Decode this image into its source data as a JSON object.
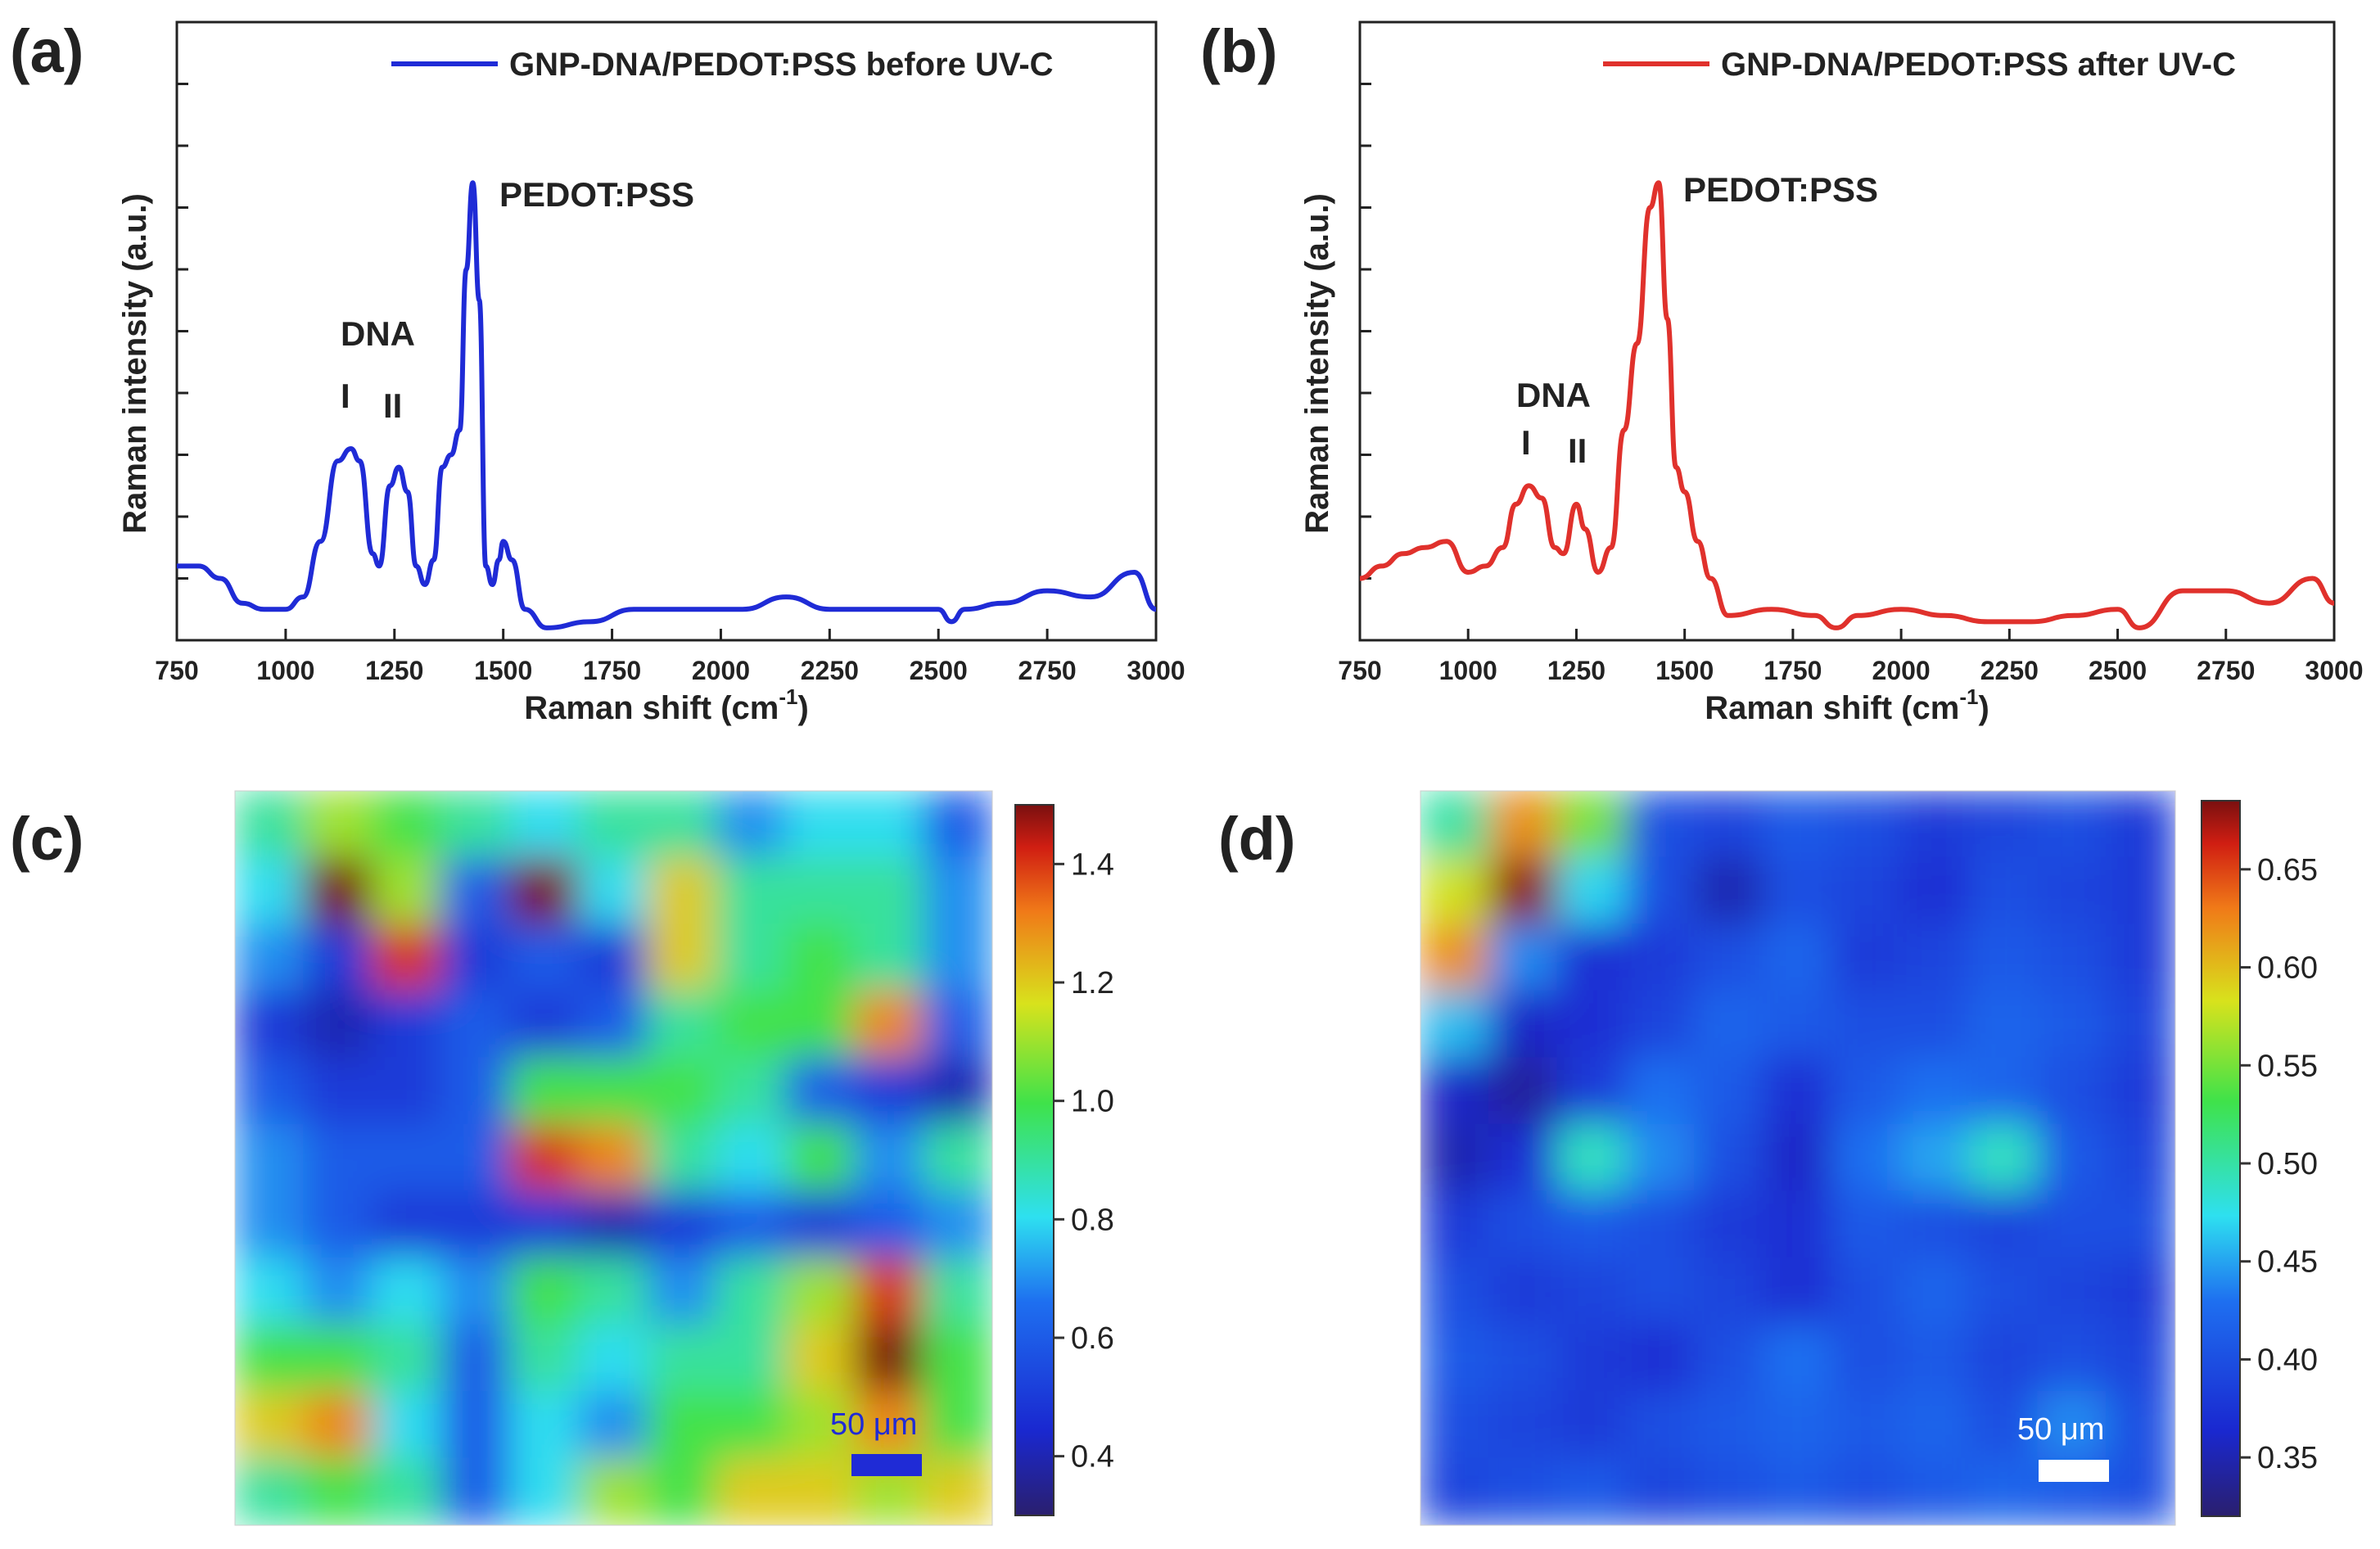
{
  "panel_labels": {
    "a": "(a)",
    "b": "(b)",
    "c": "(c)",
    "d": "(d)"
  },
  "chart_data": [
    {
      "id": "a",
      "type": "line",
      "title": "",
      "xlabel": "Raman shift (cm",
      "xlabel_sup": "-1",
      "xlabel_end": ")",
      "ylabel": "Raman intensity (a.u.)",
      "xlim": [
        750,
        3000
      ],
      "ylim": [
        0,
        100
      ],
      "xticks": [
        750,
        1000,
        1250,
        1500,
        1750,
        2000,
        2250,
        2500,
        2750,
        3000
      ],
      "yticks_unlabeled": [
        10,
        20,
        30,
        40,
        50,
        60,
        70,
        80,
        90
      ],
      "legend": "GNP-DNA/PEDOT:PSS before UV-C",
      "color": "#1f2bd6",
      "annotations": {
        "peak_label": "PEDOT:PSS",
        "dna_label": "DNA",
        "band1": "I",
        "band2": "II"
      },
      "series": [
        {
          "name": "GNP-DNA/PEDOT:PSS before UV-C",
          "x": [
            750,
            800,
            850,
            900,
            950,
            1000,
            1040,
            1080,
            1120,
            1150,
            1170,
            1200,
            1215,
            1240,
            1260,
            1280,
            1300,
            1320,
            1340,
            1360,
            1380,
            1400,
            1415,
            1430,
            1445,
            1460,
            1475,
            1490,
            1500,
            1520,
            1550,
            1600,
            1700,
            1800,
            1900,
            2000,
            2050,
            2150,
            2250,
            2400,
            2500,
            2530,
            2560,
            2650,
            2750,
            2850,
            2950,
            3000
          ],
          "y": [
            12,
            12,
            10,
            6,
            5,
            5,
            7,
            16,
            29,
            31,
            29,
            14,
            12,
            25,
            28,
            24,
            12,
            9,
            13,
            28,
            30,
            34,
            60,
            74,
            55,
            12,
            9,
            13,
            16,
            13,
            5,
            2,
            3,
            5,
            5,
            5,
            5,
            7,
            5,
            5,
            5,
            3,
            5,
            6,
            8,
            7,
            11,
            5
          ]
        }
      ]
    },
    {
      "id": "b",
      "type": "line",
      "title": "",
      "xlabel": "Raman shift (cm",
      "xlabel_sup": "-1",
      "xlabel_end": ")",
      "ylabel": "Raman intensity (a.u.)",
      "xlim": [
        750,
        3000
      ],
      "ylim": [
        0,
        100
      ],
      "xticks": [
        750,
        1000,
        1250,
        1500,
        1750,
        2000,
        2250,
        2500,
        2750,
        3000
      ],
      "yticks_unlabeled": [
        10,
        20,
        30,
        40,
        50,
        60,
        70,
        80,
        90
      ],
      "legend": "GNP-DNA/PEDOT:PSS after UV-C",
      "color": "#e0312c",
      "annotations": {
        "peak_label": "PEDOT:PSS",
        "dna_label": "DNA",
        "band1": "I",
        "band2": "II"
      },
      "series": [
        {
          "name": "GNP-DNA/PEDOT:PSS after UV-C",
          "x": [
            750,
            800,
            850,
            900,
            950,
            1000,
            1040,
            1080,
            1110,
            1140,
            1170,
            1200,
            1220,
            1250,
            1270,
            1300,
            1330,
            1360,
            1390,
            1420,
            1440,
            1460,
            1480,
            1500,
            1530,
            1560,
            1600,
            1700,
            1800,
            1850,
            1900,
            2000,
            2100,
            2200,
            2300,
            2400,
            2500,
            2550,
            2650,
            2750,
            2850,
            2950,
            3000
          ],
          "y": [
            10,
            12,
            14,
            15,
            16,
            11,
            12,
            15,
            22,
            25,
            23,
            15,
            14,
            22,
            18,
            11,
            15,
            34,
            48,
            70,
            74,
            52,
            28,
            24,
            16,
            10,
            4,
            5,
            4,
            2,
            4,
            5,
            4,
            3,
            3,
            4,
            5,
            2,
            8,
            8,
            6,
            10,
            6
          ]
        }
      ]
    },
    {
      "id": "c",
      "type": "heatmap",
      "title": "",
      "colorbar_ticks": [
        "0.4",
        "0.6",
        "0.8",
        "1.0",
        "1.2",
        "1.4"
      ],
      "colorbar_range": [
        0.3,
        1.5
      ],
      "scale_bar": "50 μm",
      "scale_bar_color": "#1f2bd6",
      "grid_size": 11,
      "values": [
        [
          0.9,
          1.1,
          1.0,
          0.9,
          0.8,
          0.9,
          0.9,
          0.7,
          0.8,
          0.8,
          0.6
        ],
        [
          0.8,
          1.5,
          1.1,
          0.6,
          1.5,
          0.8,
          1.2,
          0.9,
          0.9,
          0.9,
          0.7
        ],
        [
          0.7,
          0.5,
          1.4,
          0.5,
          0.6,
          0.5,
          1.2,
          0.9,
          1.0,
          0.9,
          0.7
        ],
        [
          0.5,
          0.4,
          0.5,
          0.6,
          0.5,
          0.6,
          0.9,
          1.0,
          1.0,
          1.3,
          0.6
        ],
        [
          0.6,
          0.5,
          0.5,
          0.6,
          1.0,
          1.0,
          1.0,
          0.9,
          0.6,
          0.5,
          0.4
        ],
        [
          0.7,
          0.6,
          0.6,
          0.6,
          1.4,
          1.3,
          0.9,
          0.8,
          1.0,
          0.7,
          0.9
        ],
        [
          0.7,
          0.6,
          0.5,
          0.5,
          0.5,
          0.4,
          0.5,
          0.6,
          0.5,
          0.6,
          0.7
        ],
        [
          0.8,
          0.7,
          0.8,
          0.7,
          1.0,
          0.9,
          0.7,
          0.9,
          1.1,
          1.4,
          0.9
        ],
        [
          1.0,
          1.0,
          0.9,
          0.6,
          0.9,
          0.8,
          0.9,
          0.9,
          1.2,
          1.5,
          1.0
        ],
        [
          1.2,
          1.3,
          0.8,
          0.6,
          0.8,
          0.7,
          1.0,
          1.0,
          1.1,
          1.3,
          1.0
        ],
        [
          0.9,
          1.0,
          0.9,
          0.6,
          0.8,
          1.1,
          1.0,
          1.2,
          1.2,
          1.1,
          1.2
        ]
      ]
    },
    {
      "id": "d",
      "type": "heatmap",
      "title": "",
      "colorbar_ticks": [
        "0.35",
        "0.40",
        "0.45",
        "0.50",
        "0.55",
        "0.60",
        "0.65"
      ],
      "colorbar_range": [
        0.32,
        0.685
      ],
      "scale_bar": "50 μm",
      "scale_bar_color": "#ffffff",
      "grid_size": 11,
      "values": [
        [
          0.5,
          0.62,
          0.55,
          0.4,
          0.39,
          0.41,
          0.4,
          0.38,
          0.39,
          0.4,
          0.38
        ],
        [
          0.58,
          0.68,
          0.47,
          0.4,
          0.35,
          0.4,
          0.39,
          0.37,
          0.4,
          0.39,
          0.38
        ],
        [
          0.62,
          0.44,
          0.37,
          0.38,
          0.4,
          0.42,
          0.38,
          0.39,
          0.41,
          0.4,
          0.38
        ],
        [
          0.46,
          0.36,
          0.37,
          0.39,
          0.42,
          0.41,
          0.4,
          0.4,
          0.42,
          0.41,
          0.39
        ],
        [
          0.36,
          0.34,
          0.38,
          0.43,
          0.41,
          0.37,
          0.41,
          0.43,
          0.42,
          0.4,
          0.38
        ],
        [
          0.35,
          0.37,
          0.49,
          0.44,
          0.4,
          0.36,
          0.43,
          0.45,
          0.49,
          0.41,
          0.39
        ],
        [
          0.38,
          0.4,
          0.41,
          0.4,
          0.38,
          0.37,
          0.41,
          0.4,
          0.39,
          0.4,
          0.4
        ],
        [
          0.4,
          0.38,
          0.39,
          0.4,
          0.39,
          0.37,
          0.4,
          0.42,
          0.4,
          0.39,
          0.38
        ],
        [
          0.41,
          0.4,
          0.38,
          0.37,
          0.4,
          0.43,
          0.4,
          0.41,
          0.39,
          0.4,
          0.39
        ],
        [
          0.4,
          0.39,
          0.38,
          0.4,
          0.41,
          0.42,
          0.41,
          0.42,
          0.4,
          0.44,
          0.4
        ],
        [
          0.39,
          0.4,
          0.41,
          0.39,
          0.4,
          0.41,
          0.4,
          0.41,
          0.42,
          0.41,
          0.4
        ]
      ]
    }
  ]
}
